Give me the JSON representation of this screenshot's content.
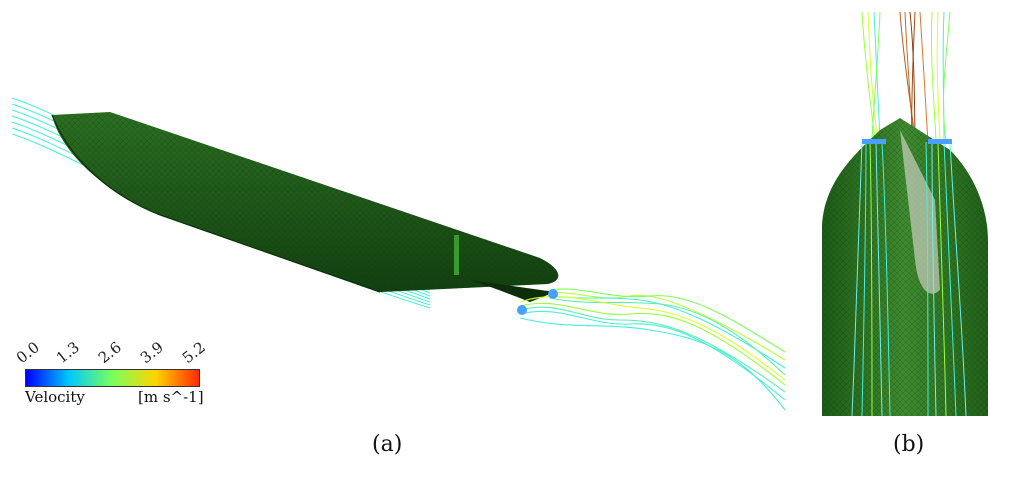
{
  "colorbar": {
    "ticks": [
      "0.0",
      "1.3",
      "2.6",
      "3.9",
      "5.2"
    ],
    "quantity": "Velocity",
    "unit": "[m s^-1]",
    "colors": [
      "#0000ff",
      "#00c8ff",
      "#7cff5a",
      "#ffd400",
      "#ff2a00"
    ]
  },
  "captions": {
    "left": "(a)",
    "right": "(b)"
  },
  "panels": {
    "left": {
      "hull_color": "#1f5a1a",
      "streamline_color": "#47f0d8"
    },
    "right": {
      "hull_color": "#2f7a24",
      "streamline_color": "#6ff0e6",
      "accent": "#b45a1e"
    }
  }
}
